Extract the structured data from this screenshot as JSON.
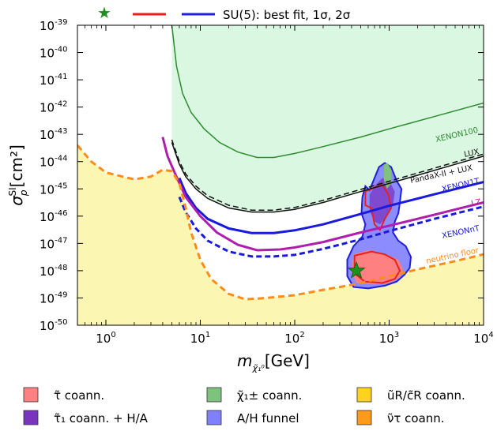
{
  "chart_data": {
    "type": "line",
    "title": "",
    "xlabel": "m",
    "xlabel_sub": "χ̃₁⁰",
    "xlabel_unit": "[GeV]",
    "ylabel": "σ",
    "ylabel_sub": "p",
    "ylabel_sup": "SI",
    "ylabel_unit": "[cm²]",
    "xscale": "log",
    "yscale": "log",
    "xlim": [
      0.5,
      10000
    ],
    "ylim": [
      1e-50,
      1e-39
    ],
    "x_ticks": [
      {
        "base": "10",
        "exp": "0",
        "value": 1
      },
      {
        "base": "10",
        "exp": "1",
        "value": 10
      },
      {
        "base": "10",
        "exp": "2",
        "value": 100
      },
      {
        "base": "10",
        "exp": "3",
        "value": 1000
      },
      {
        "base": "10",
        "exp": "4",
        "value": 10000
      }
    ],
    "y_ticks": [
      {
        "base": "10",
        "exp": "-39",
        "value": -39
      },
      {
        "base": "10",
        "exp": "-40",
        "value": -40
      },
      {
        "base": "10",
        "exp": "-41",
        "value": -41
      },
      {
        "base": "10",
        "exp": "-42",
        "value": -42
      },
      {
        "base": "10",
        "exp": "-43",
        "value": -43
      },
      {
        "base": "10",
        "exp": "-44",
        "value": -44
      },
      {
        "base": "10",
        "exp": "-45",
        "value": -45
      },
      {
        "base": "10",
        "exp": "-46",
        "value": -46
      },
      {
        "base": "10",
        "exp": "-47",
        "value": -47
      },
      {
        "base": "10",
        "exp": "-48",
        "value": -48
      },
      {
        "base": "10",
        "exp": "-49",
        "value": -49
      },
      {
        "base": "10",
        "exp": "-50",
        "value": -50
      }
    ],
    "series": [
      {
        "name": "XENON100",
        "color": "#2e8b2e",
        "style": "solid",
        "points": [
          [
            5,
            -39
          ],
          [
            5.6,
            -40.5
          ],
          [
            6.5,
            -41.5
          ],
          [
            8,
            -42.2
          ],
          [
            11,
            -42.8
          ],
          [
            16,
            -43.3
          ],
          [
            25,
            -43.65
          ],
          [
            40,
            -43.85
          ],
          [
            60,
            -43.85
          ],
          [
            100,
            -43.7
          ],
          [
            200,
            -43.45
          ],
          [
            500,
            -43.1
          ],
          [
            1000,
            -42.8
          ],
          [
            3000,
            -42.35
          ],
          [
            10000,
            -41.85
          ]
        ]
      },
      {
        "name": "LUX",
        "color": "#111111",
        "style": "solid",
        "points": [
          [
            5,
            -43.3
          ],
          [
            6,
            -44.1
          ],
          [
            7,
            -44.55
          ],
          [
            9,
            -45.0
          ],
          [
            12,
            -45.35
          ],
          [
            20,
            -45.7
          ],
          [
            35,
            -45.85
          ],
          [
            60,
            -45.85
          ],
          [
            100,
            -45.75
          ],
          [
            200,
            -45.5
          ],
          [
            500,
            -45.1
          ],
          [
            1000,
            -44.8
          ],
          [
            2000,
            -44.5
          ],
          [
            5000,
            -44.1
          ],
          [
            10000,
            -43.8
          ]
        ]
      },
      {
        "name": "PandaX-II + LUX",
        "color": "#111111",
        "style": "dashed",
        "points": [
          [
            5,
            -43.2
          ],
          [
            6,
            -44.0
          ],
          [
            7,
            -44.45
          ],
          [
            9,
            -44.9
          ],
          [
            12,
            -45.25
          ],
          [
            20,
            -45.6
          ],
          [
            35,
            -45.78
          ],
          [
            60,
            -45.78
          ],
          [
            100,
            -45.68
          ],
          [
            200,
            -45.42
          ],
          [
            500,
            -45.02
          ],
          [
            1000,
            -44.72
          ],
          [
            2000,
            -44.42
          ],
          [
            5000,
            -44.02
          ],
          [
            10000,
            -43.72
          ]
        ]
      },
      {
        "name": "XENON1T",
        "color": "#1a1adc",
        "style": "solid",
        "points": [
          [
            6,
            -44.6
          ],
          [
            7,
            -45.15
          ],
          [
            9,
            -45.7
          ],
          [
            12,
            -46.1
          ],
          [
            20,
            -46.45
          ],
          [
            35,
            -46.62
          ],
          [
            60,
            -46.62
          ],
          [
            100,
            -46.52
          ],
          [
            200,
            -46.3
          ],
          [
            500,
            -45.92
          ],
          [
            1000,
            -45.62
          ],
          [
            3000,
            -45.2
          ],
          [
            10000,
            -44.75
          ]
        ]
      },
      {
        "name": "LZ",
        "color": "#b01eb0",
        "style": "solid",
        "points": [
          [
            4,
            -43.1
          ],
          [
            4.5,
            -43.8
          ],
          [
            5.5,
            -44.5
          ],
          [
            7,
            -45.3
          ],
          [
            10,
            -46.0
          ],
          [
            15,
            -46.6
          ],
          [
            25,
            -47.05
          ],
          [
            40,
            -47.25
          ],
          [
            70,
            -47.22
          ],
          [
            100,
            -47.15
          ],
          [
            200,
            -46.95
          ],
          [
            500,
            -46.6
          ],
          [
            1000,
            -46.35
          ],
          [
            3000,
            -45.95
          ],
          [
            10000,
            -45.5
          ]
        ]
      },
      {
        "name": "XENONnT",
        "color": "#1a1adc",
        "style": "dashed",
        "points": [
          [
            6,
            -45.3
          ],
          [
            7,
            -45.85
          ],
          [
            9,
            -46.45
          ],
          [
            12,
            -46.9
          ],
          [
            20,
            -47.3
          ],
          [
            35,
            -47.48
          ],
          [
            60,
            -47.48
          ],
          [
            100,
            -47.42
          ],
          [
            200,
            -47.2
          ],
          [
            500,
            -46.85
          ],
          [
            1000,
            -46.55
          ],
          [
            3000,
            -46.1
          ],
          [
            10000,
            -45.65
          ]
        ]
      },
      {
        "name": "neutrino floor",
        "color": "#ff8c1a",
        "style": "dashed",
        "points": [
          [
            0.5,
            -43.4
          ],
          [
            0.7,
            -44.0
          ],
          [
            1,
            -44.4
          ],
          [
            1.5,
            -44.55
          ],
          [
            2,
            -44.65
          ],
          [
            3,
            -44.55
          ],
          [
            4,
            -44.3
          ],
          [
            5,
            -44.35
          ],
          [
            6,
            -44.8
          ],
          [
            7,
            -45.7
          ],
          [
            8,
            -46.6
          ],
          [
            10,
            -47.6
          ],
          [
            13,
            -48.3
          ],
          [
            20,
            -48.85
          ],
          [
            30,
            -49.05
          ],
          [
            50,
            -49.0
          ],
          [
            100,
            -48.9
          ],
          [
            200,
            -48.7
          ],
          [
            300,
            -48.6
          ],
          [
            500,
            -48.45
          ],
          [
            1000,
            -48.2
          ],
          [
            2000,
            -47.95
          ],
          [
            5000,
            -47.65
          ],
          [
            10000,
            -47.4
          ]
        ]
      }
    ],
    "curve_labels": {
      "xenon100": "XENON100",
      "lux": "LUX",
      "pandax": "PandaX-II + LUX",
      "xenon1t": "XENON1T",
      "lz": "LZ",
      "xenonnt": "XENONnT",
      "nufloor": "neutrino floor"
    },
    "regions": [
      {
        "name": "excluded-green",
        "color": "#d9f7e1"
      },
      {
        "name": "below-floor-yellow",
        "color": "#fbf7b3"
      }
    ],
    "best_fit": {
      "x": 450,
      "y": -48.0,
      "color": "#1f8f1f"
    },
    "top_legend": {
      "label": "SU(5): best fit, 1σ, 2σ",
      "colors": [
        "#1f8f1f",
        "#e81f1f",
        "#1f1fdc"
      ]
    },
    "legend": [
      {
        "label": "τ̃ coann.",
        "color": "#ff8080"
      },
      {
        "label": "χ̃₁± coann.",
        "color": "#7dc27d"
      },
      {
        "label": "ũR/c̃R coann.",
        "color": "#ffd21f"
      },
      {
        "label": "τ̃₁ coann. + H/A",
        "color": "#7a35c0"
      },
      {
        "label": "A/H funnel",
        "color": "#7f80ff"
      },
      {
        "label": "ν̃τ coann.",
        "color": "#ff9a1a"
      }
    ],
    "legend_placement": "bottom",
    "grid": false
  }
}
